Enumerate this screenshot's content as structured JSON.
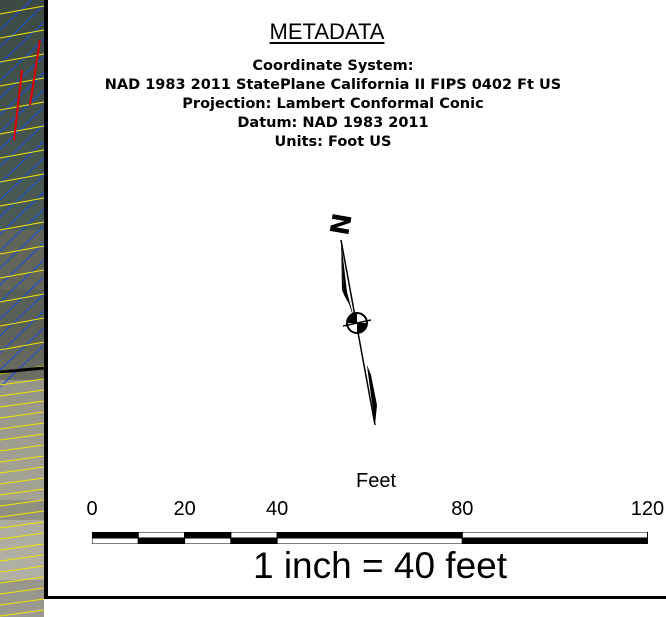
{
  "metadata": {
    "title": "METADATA",
    "lines": [
      "Coordinate System:",
      "NAD 1983 2011 StatePlane California II FIPS 0402 Ft US",
      "Projection: Lambert Conformal Conic",
      "Datum: NAD 1983 2011",
      "Units: Foot US"
    ]
  },
  "north_arrow": {
    "letter": "N",
    "icon": "north-arrow-icon"
  },
  "scale_bar": {
    "units_label": "Feet",
    "tick_labels": [
      "0",
      "20",
      "40",
      "80",
      "120"
    ],
    "tick_values": [
      0,
      20,
      40,
      80,
      120
    ],
    "segment_colors": [
      "#000000",
      "#ffffff"
    ]
  },
  "scale_ratio": "1 inch = 40 feet",
  "imagery": {
    "parcel_line_color": "#1a4fd6",
    "highlight_line_color": "#e00000",
    "boundary_line_color": "#f2e600"
  }
}
